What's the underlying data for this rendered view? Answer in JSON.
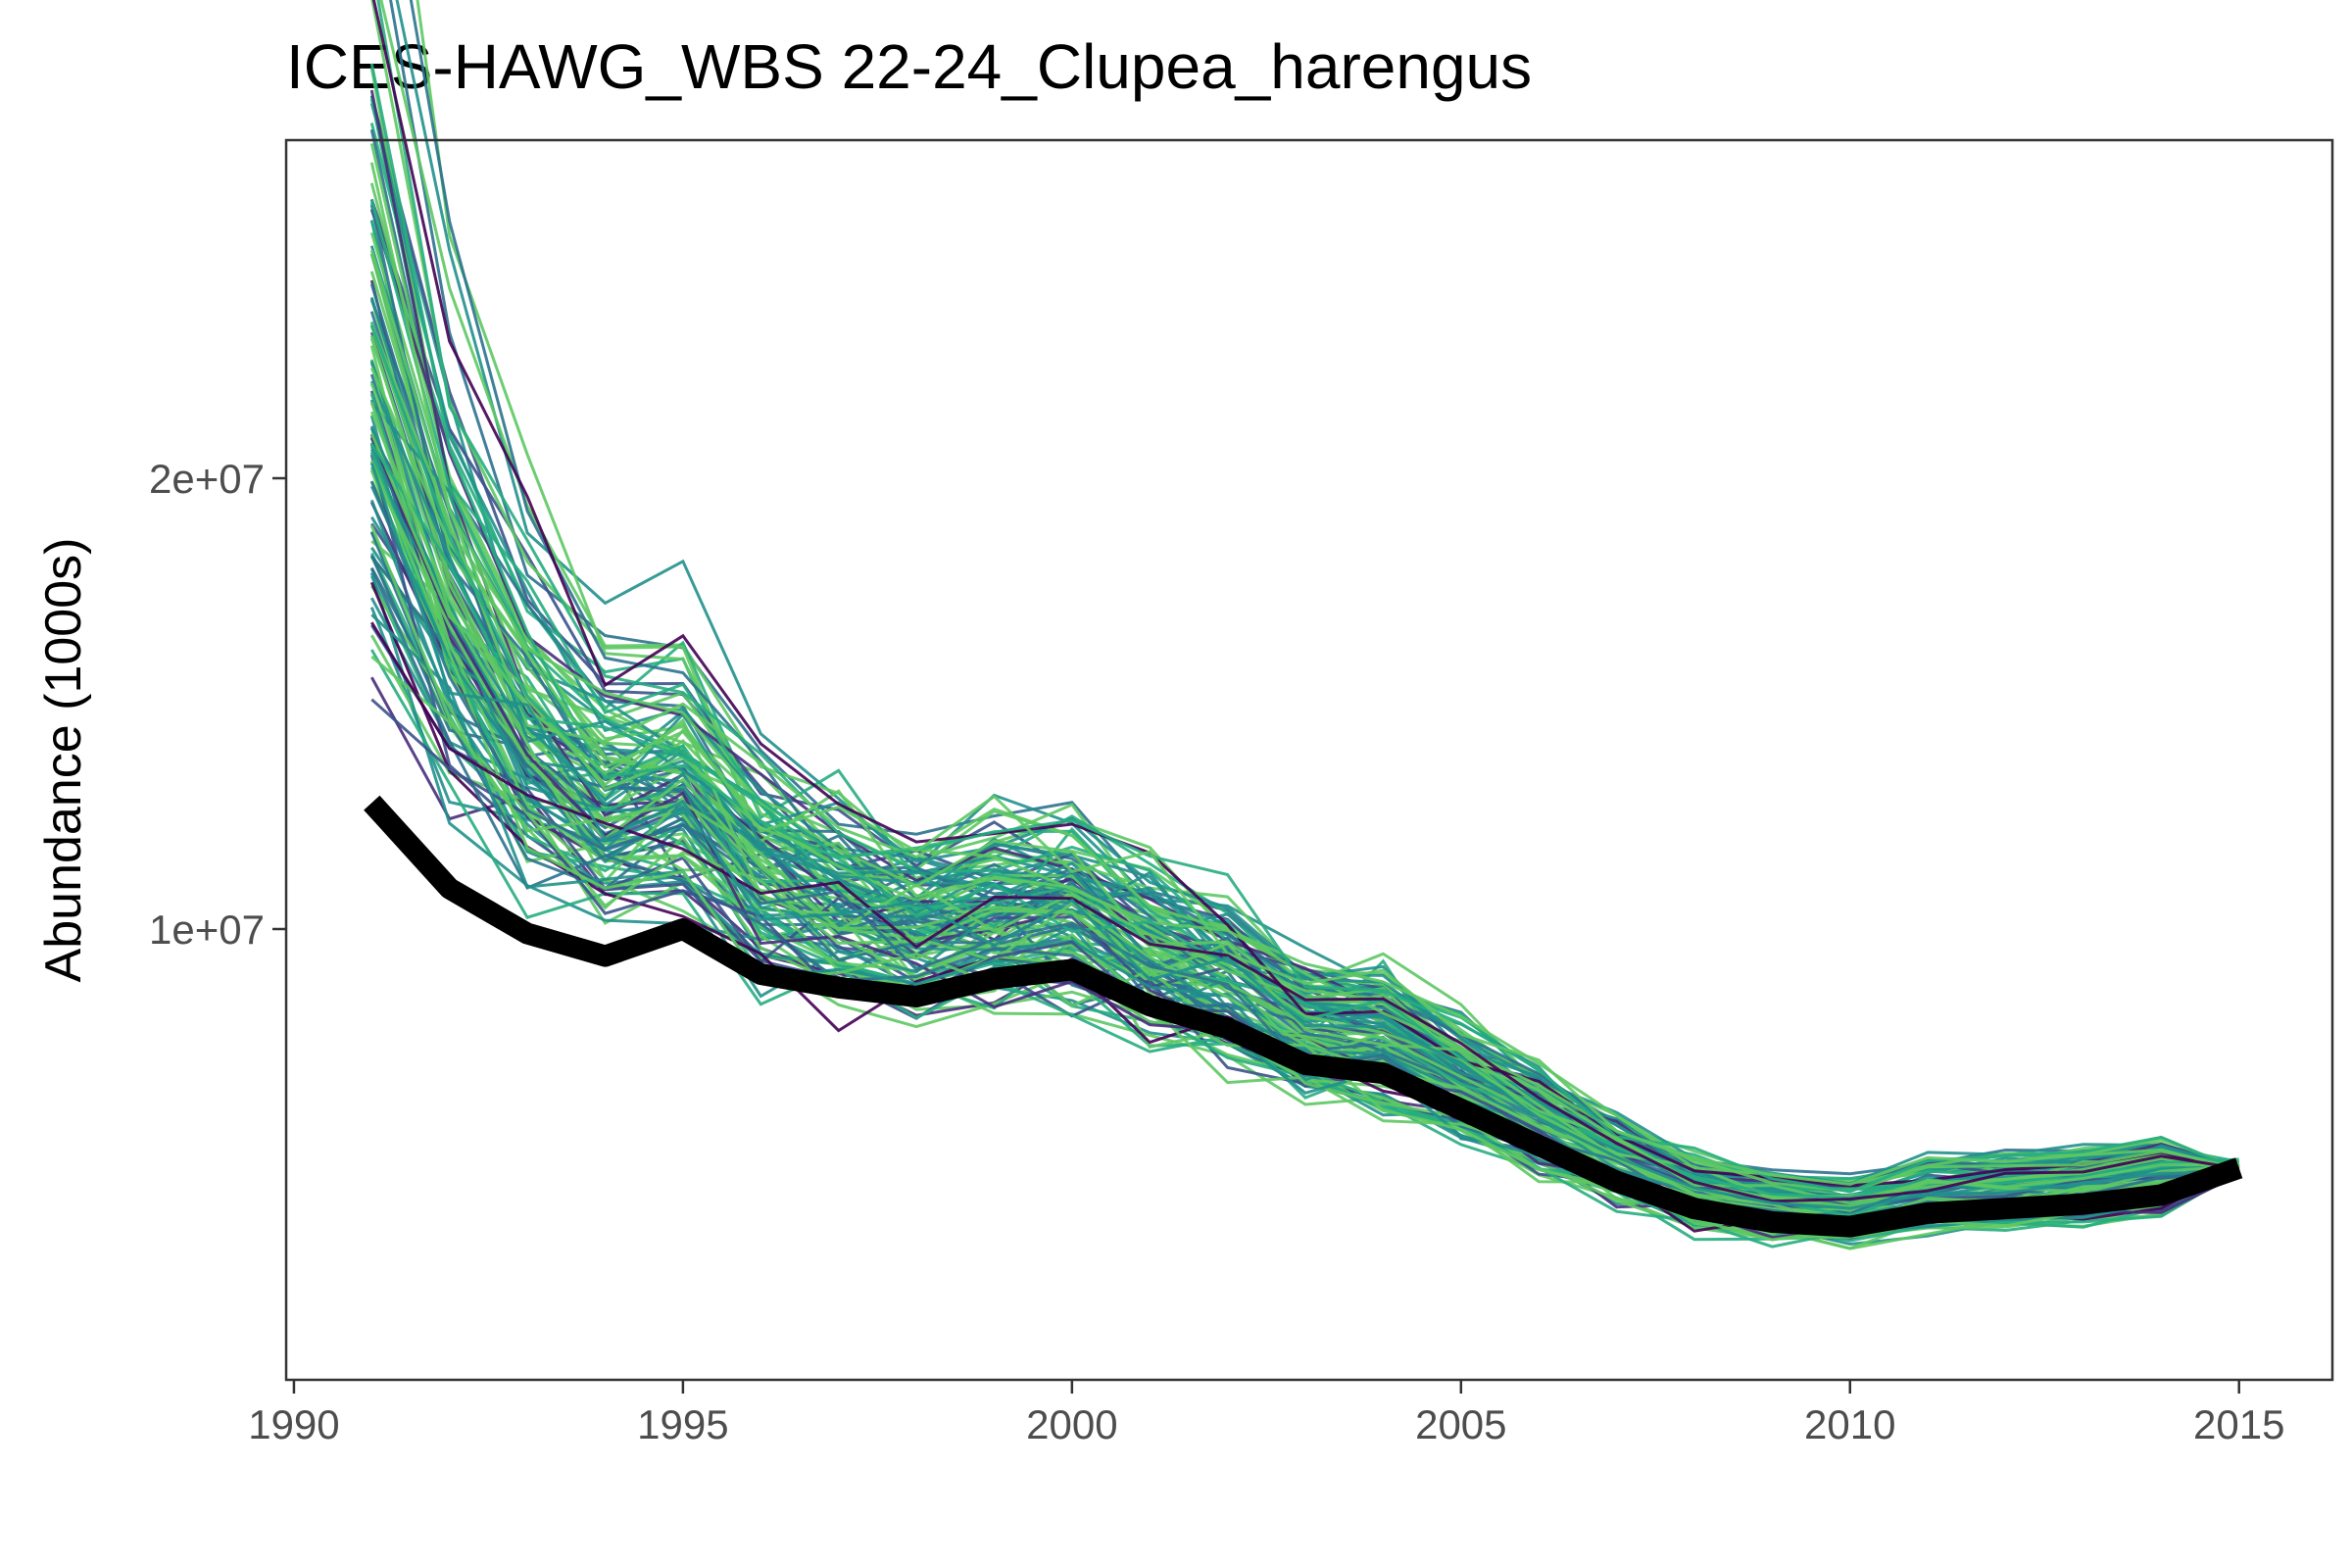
{
  "chart_data": {
    "type": "line",
    "title": "ICES-HAWG_WBS 22-24_Clupea_harengus",
    "xlabel": "",
    "ylabel": "Abundance (1000s)",
    "xlim": [
      1989.9,
      2016.2
    ],
    "ylim": [
      0,
      27500000
    ],
    "x_ticks": [
      1990,
      1995,
      2000,
      2005,
      2010,
      2015
    ],
    "x_tick_labels": [
      "1990",
      "1995",
      "2000",
      "2005",
      "2010",
      "2015"
    ],
    "y_ticks": [
      10000000,
      20000000
    ],
    "y_tick_labels": [
      "1e+07",
      "2e+07"
    ],
    "grid": false,
    "legend": "none",
    "x": [
      1991,
      1992,
      1993,
      1994,
      1995,
      1996,
      1997,
      1998,
      1999,
      2000,
      2001,
      2002,
      2003,
      2004,
      2005,
      2006,
      2007,
      2008,
      2009,
      2010,
      2011,
      2012,
      2013,
      2014,
      2015
    ],
    "main_series": {
      "color": "#000000",
      "values": [
        12800000,
        10900000,
        9900000,
        9400000,
        10000000,
        9000000,
        8700000,
        8500000,
        8900000,
        9100000,
        8300000,
        7800000,
        7000000,
        6800000,
        6000000,
        5200000,
        4400000,
        3800000,
        3500000,
        3400000,
        3700000,
        3800000,
        3900000,
        4100000,
        4700000
      ]
    },
    "simulation_series": {
      "count": 120,
      "palette": [
        "#440154",
        "#472d7b",
        "#3b528b",
        "#2c728e",
        "#21908c",
        "#27ad81",
        "#5dc863"
      ]
    }
  }
}
